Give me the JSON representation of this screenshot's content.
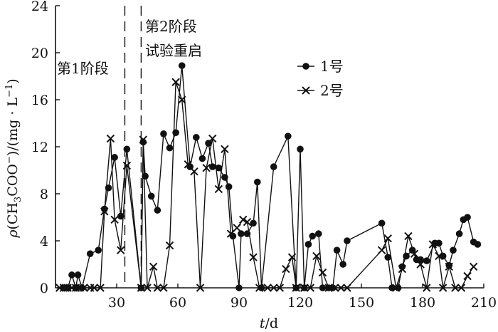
{
  "chart_data": {
    "type": "line",
    "xlabel": "t/d",
    "ylabel": "ρ(CH3COO−)/(mg·L−1)",
    "xlim": [
      0,
      210
    ],
    "ylim": [
      0,
      24
    ],
    "xticks": [
      30,
      60,
      90,
      120,
      150,
      180,
      210
    ],
    "yticks": [
      0,
      4,
      8,
      12,
      16,
      20,
      24
    ],
    "grid": false,
    "legend_position": "top-right",
    "stage_boundaries": [
      34,
      42
    ],
    "annotations": {
      "stage1": "第1阶段",
      "stage2_line1": "第2阶段",
      "stage2_line2": "试验重启"
    },
    "series": [
      {
        "name": "1号",
        "marker": "circle",
        "points": [
          [
            4,
            0
          ],
          [
            6,
            0
          ],
          [
            8,
            1.1
          ],
          [
            10,
            0
          ],
          [
            11,
            1.1
          ],
          [
            13,
            0
          ],
          [
            17,
            2.9
          ],
          [
            21,
            3.2
          ],
          [
            24,
            6.7
          ],
          [
            26,
            8.5
          ],
          [
            29,
            11.1
          ],
          [
            32,
            6.1
          ],
          [
            35,
            11.8
          ],
          [
            42,
            0
          ],
          [
            43,
            12.4
          ],
          [
            44,
            9.5
          ],
          [
            47,
            7.8
          ],
          [
            50,
            6.6
          ],
          [
            53,
            13.1
          ],
          [
            56,
            11.9
          ],
          [
            59,
            13.2
          ],
          [
            62,
            18.9
          ],
          [
            66,
            10.3
          ],
          [
            69,
            12.8
          ],
          [
            72,
            11
          ],
          [
            75,
            12.3
          ],
          [
            77,
            10.3
          ],
          [
            80,
            10.2
          ],
          [
            83,
            9.4
          ],
          [
            85,
            8.6
          ],
          [
            87,
            4.4
          ],
          [
            90,
            0
          ],
          [
            91,
            4.6
          ],
          [
            94,
            4.6
          ],
          [
            97,
            5.5
          ],
          [
            99,
            9.0
          ],
          [
            101,
            0
          ],
          [
            107,
            10.3
          ],
          [
            114,
            12.9
          ],
          [
            118,
            0
          ],
          [
            120,
            11.8
          ],
          [
            122,
            0
          ],
          [
            124,
            3.7
          ],
          [
            126,
            4.4
          ],
          [
            129,
            4.6
          ],
          [
            131,
            0
          ],
          [
            134,
            0
          ],
          [
            136,
            0
          ],
          [
            138,
            3.2
          ],
          [
            141,
            2.0
          ],
          [
            143,
            4.0
          ],
          [
            160,
            5.5
          ],
          [
            163,
            2.6
          ],
          [
            165,
            0
          ],
          [
            168,
            0
          ],
          [
            170,
            1.8
          ],
          [
            172,
            2.7
          ],
          [
            175,
            3.2
          ],
          [
            177,
            2.4
          ],
          [
            179,
            2.4
          ],
          [
            182,
            2.3
          ],
          [
            186,
            3.8
          ],
          [
            188,
            3.8
          ],
          [
            190,
            2.7
          ],
          [
            193,
            1.9
          ],
          [
            195,
            3.2
          ],
          [
            198,
            4.6
          ],
          [
            200,
            5.8
          ],
          [
            202,
            6.0
          ],
          [
            205,
            3.9
          ],
          [
            207,
            3.7
          ]
        ]
      },
      {
        "name": "2号",
        "marker": "x",
        "points": [
          [
            2,
            0
          ],
          [
            4,
            0
          ],
          [
            6,
            0
          ],
          [
            8,
            0
          ],
          [
            10,
            0
          ],
          [
            12,
            0
          ],
          [
            14,
            0
          ],
          [
            17,
            0
          ],
          [
            19,
            0
          ],
          [
            22,
            0
          ],
          [
            24,
            6.5
          ],
          [
            27,
            12.7
          ],
          [
            29,
            5.8
          ],
          [
            32,
            3.2
          ],
          [
            35,
            10.4
          ],
          [
            42,
            0
          ],
          [
            43,
            12.6
          ],
          [
            45,
            0
          ],
          [
            48,
            1.8
          ],
          [
            50,
            0
          ],
          [
            53,
            0
          ],
          [
            56,
            3.6
          ],
          [
            59,
            17.5
          ],
          [
            62,
            16.0
          ],
          [
            65,
            10.5
          ],
          [
            68,
            9.9
          ],
          [
            71,
            0
          ],
          [
            74,
            10.2
          ],
          [
            77,
            12.7
          ],
          [
            80,
            8.4
          ],
          [
            83,
            11.8
          ],
          [
            86,
            4.6
          ],
          [
            89,
            5.1
          ],
          [
            92,
            5.8
          ],
          [
            94,
            5.6
          ],
          [
            97,
            2.6
          ],
          [
            100,
            0
          ],
          [
            104,
            0
          ],
          [
            107,
            0
          ],
          [
            110,
            0
          ],
          [
            113,
            1.6
          ],
          [
            116,
            2.6
          ],
          [
            118,
            0
          ],
          [
            122,
            0
          ],
          [
            125,
            0
          ],
          [
            128,
            2.7
          ],
          [
            131,
            1.3
          ],
          [
            134,
            0
          ],
          [
            137,
            0
          ],
          [
            140,
            0
          ],
          [
            143,
            0
          ],
          [
            160,
            3.2
          ],
          [
            163,
            4.2
          ],
          [
            167,
            0
          ],
          [
            170,
            1.6
          ],
          [
            173,
            4.4
          ],
          [
            176,
            2.9
          ],
          [
            179,
            2.0
          ],
          [
            182,
            0
          ],
          [
            185,
            3.7
          ],
          [
            188,
            2.7
          ],
          [
            190,
            0
          ],
          [
            193,
            1.8
          ],
          [
            196,
            0
          ],
          [
            199,
            0
          ],
          [
            202,
            1.0
          ],
          [
            205,
            1.8
          ]
        ]
      }
    ]
  }
}
